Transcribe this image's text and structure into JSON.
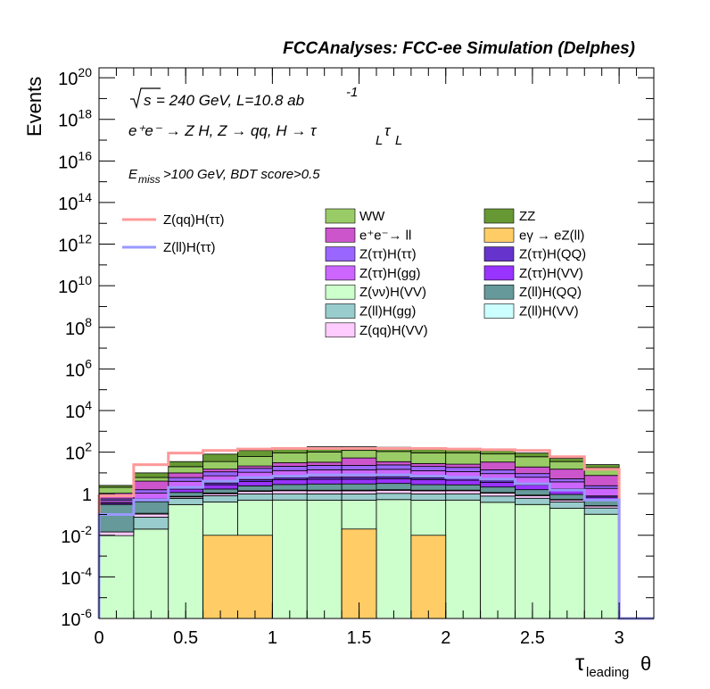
{
  "header": "FCCAnalyses: FCC-ee Simulation (Delphes)",
  "annotations": {
    "line1": "= 240 GeV, L=10.8 ab",
    "line1_sqrt": "s",
    "line1_exp": "-1",
    "line2": "e⁺e⁻ → Z H, Z → qq, H → τ",
    "line2_sub1": "L",
    "line2_tau2": "τ",
    "line2_sub2": "L",
    "line3_E": "E",
    "line3_sub": "miss",
    "line3_rest": ">100 GeV, BDT score>0.5"
  },
  "chart_data": {
    "type": "bar",
    "stacked": true,
    "ylog": true,
    "xlabel_tau": "τ",
    "xlabel_sub": "leading",
    "xlabel_theta": "θ",
    "ylabel": "Events",
    "xlim": [
      0,
      3.2
    ],
    "ylim": [
      1e-06,
      3e+20
    ],
    "x_ticks": [
      "0",
      "0.5",
      "1",
      "1.5",
      "2",
      "2.5",
      "3"
    ],
    "y_tick_exps": [
      "-6",
      "-4",
      "-2",
      "",
      "2",
      "4",
      "6",
      "8",
      "10",
      "12",
      "14",
      "16",
      "18",
      "20"
    ],
    "y_tick_one": "1",
    "bin_edges": [
      0,
      0.2,
      0.4,
      0.6,
      0.8,
      1.0,
      1.2,
      1.4,
      1.6,
      1.8,
      2.0,
      2.2,
      2.4,
      2.6,
      2.8,
      3.0,
      3.2
    ],
    "stack_totals": [
      2.5,
      10,
      35,
      80,
      120,
      160,
      180,
      180,
      170,
      160,
      150,
      120,
      90,
      50,
      25,
      0
    ],
    "backgrounds": [
      {
        "name": "Z(νν)H(VV)",
        "color": "#ccffcc",
        "values": [
          0.01,
          0.02,
          0.3,
          0.4,
          0.5,
          0.5,
          0.5,
          0.5,
          0.5,
          0.5,
          0.5,
          0.4,
          0.3,
          0.2,
          0.1,
          0
        ]
      },
      {
        "name": "Z(ll)H(gg)",
        "color": "#99cccc",
        "values": [
          0,
          0.055,
          0.3,
          0.4,
          0.5,
          0.5,
          0.5,
          0.5,
          0.5,
          0.5,
          0.5,
          0.4,
          0.3,
          0.2,
          0.1,
          0
        ]
      },
      {
        "name": "Z(qq)H(VV)",
        "color": "#ffccff",
        "values": [
          0.005,
          0.03,
          0.1,
          0.2,
          0.3,
          0.4,
          0.4,
          0.4,
          0.4,
          0.4,
          0.4,
          0.3,
          0.2,
          0.1,
          0.05,
          0
        ]
      },
      {
        "name": "eγ → eZ(ll)",
        "color": "#ffcc66",
        "values": [
          0,
          0,
          0,
          0.01,
          0.01,
          0,
          0,
          0.02,
          0,
          0.01,
          0,
          0,
          0,
          0,
          0,
          0
        ]
      },
      {
        "name": "Z(ll)H(VV)",
        "color": "#ccffff",
        "values": [
          0,
          0.01,
          0.05,
          0.08,
          0.1,
          0.1,
          0.1,
          0.1,
          0.1,
          0.1,
          0.1,
          0.08,
          0.05,
          0.03,
          0.01,
          0
        ]
      },
      {
        "name": "Z(ll)H(QQ)",
        "color": "#669999",
        "values": [
          0.3,
          0.3,
          0.4,
          0.6,
          1.0,
          1.3,
          1.5,
          1.5,
          1.5,
          1.3,
          1.2,
          1.0,
          0.7,
          0.4,
          0.2,
          0
        ]
      },
      {
        "name": "Z(ττ)H(VV)",
        "color": "#9933ff",
        "values": [
          0.05,
          0.1,
          0.5,
          1.0,
          1.5,
          2.0,
          2.0,
          2.0,
          2.0,
          2.0,
          1.8,
          1.5,
          1.0,
          0.5,
          0.2,
          0
        ]
      },
      {
        "name": "Z(ττ)H(QQ)",
        "color": "#6633cc",
        "values": [
          0.02,
          0.05,
          0.3,
          0.6,
          1.0,
          1.2,
          1.3,
          1.3,
          1.3,
          1.2,
          1.1,
          0.9,
          0.6,
          0.3,
          0.1,
          0
        ]
      },
      {
        "name": "Z(ττ)H(gg)",
        "color": "#cc66ff",
        "values": [
          0.1,
          0.5,
          2,
          4,
          6,
          7,
          8,
          8,
          8,
          7,
          6,
          5,
          3,
          2,
          1,
          0
        ]
      },
      {
        "name": "Z(ττ)H(ττ)",
        "color": "#9966ff",
        "values": [
          0.1,
          0.5,
          2,
          4,
          6,
          8,
          9,
          9,
          9,
          8,
          7,
          5,
          3,
          1.5,
          0.6,
          0
        ]
      },
      {
        "name": "e⁺e⁻→ ll",
        "color": "#cc55cc",
        "values": [
          0.5,
          2.5,
          4,
          4,
          5,
          10,
          10,
          30,
          10,
          8,
          8,
          20,
          10,
          10,
          5,
          0
        ]
      },
      {
        "name": "WW",
        "color": "#99cc66",
        "values": [
          1,
          2,
          10,
          20,
          40,
          60,
          70,
          70,
          70,
          65,
          65,
          50,
          40,
          20,
          10,
          0
        ]
      },
      {
        "name": "ZZ",
        "color": "#669933",
        "values": [
          0.5,
          4,
          15,
          45,
          60,
          70,
          80,
          60,
          60,
          70,
          60,
          40,
          30,
          15,
          7,
          0
        ]
      }
    ],
    "signals": [
      {
        "name": "Z(qq)H(ττ)",
        "color": "#ff9999",
        "values": [
          0.8,
          25,
          90,
          120,
          140,
          150,
          150,
          150,
          150,
          150,
          140,
          130,
          120,
          60,
          15,
          0
        ]
      },
      {
        "name": "Z(ll)H(ττ)",
        "color": "#9999ff",
        "values": [
          0.1,
          0.5,
          2,
          4,
          6,
          7,
          8,
          8,
          8,
          7,
          6,
          5,
          3,
          1.5,
          0.5,
          0
        ]
      }
    ],
    "eya_bins": [
      {
        "x0": 0.6,
        "x1": 1.0,
        "value": 0.01
      },
      {
        "x0": 1.4,
        "x1": 1.6,
        "value": 0.02
      },
      {
        "x0": 1.8,
        "x1": 2.0,
        "value": 0.01
      }
    ],
    "legend_col1": [
      "WW",
      "e⁺e⁻→ ll",
      "Z(ττ)H(ττ)",
      "Z(ττ)H(gg)",
      "Z(νν)H(VV)",
      "Z(ll)H(gg)",
      "Z(qq)H(VV)"
    ],
    "legend_col2": [
      "ZZ",
      "eγ → eZ(ll)",
      "Z(ττ)H(QQ)",
      "Z(ττ)H(VV)",
      "Z(ll)H(QQ)",
      "Z(ll)H(VV)"
    ],
    "legend_signals": [
      "Z(qq)H(ττ)",
      "Z(ll)H(ττ)"
    ]
  }
}
